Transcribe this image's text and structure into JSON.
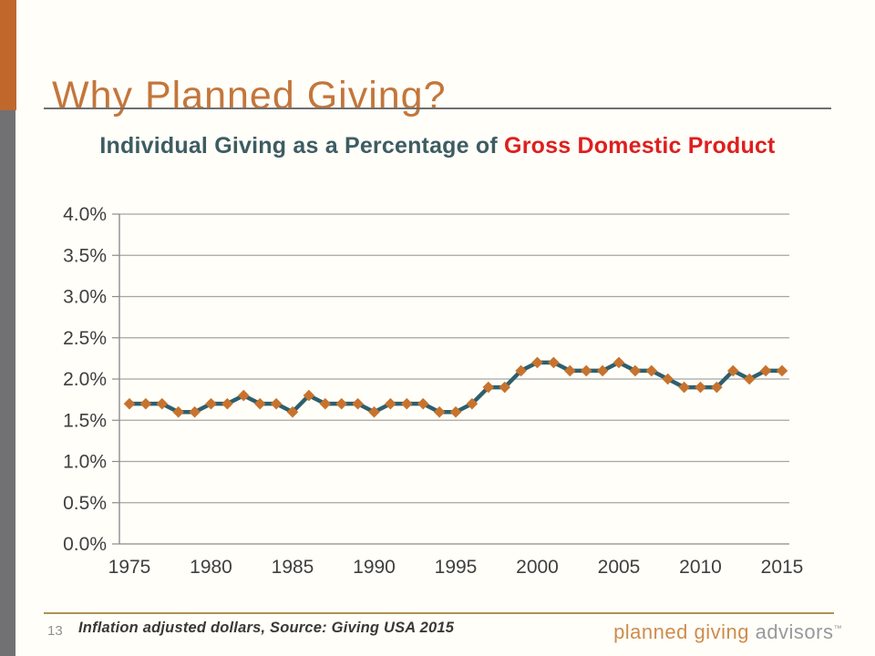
{
  "slide": {
    "title": "Why Planned Giving?",
    "page_number": "13",
    "footnote": "Inflation adjusted dollars, Source: Giving USA 2015",
    "logo": {
      "primary": "planned giving ",
      "secondary": "advisors",
      "mark": "™"
    },
    "colors": {
      "accent_orange": "#c0682c",
      "title_orange": "#c3763c",
      "sidebar_gray": "#717174",
      "footer_line_gold": "#ad9254"
    }
  },
  "chart_data": {
    "type": "line",
    "title": {
      "prefix": "Individual Giving as a Percentage of ",
      "highlight": "Gross Domestic Product"
    },
    "x": [
      1975,
      1976,
      1977,
      1978,
      1979,
      1980,
      1981,
      1982,
      1983,
      1984,
      1985,
      1986,
      1987,
      1988,
      1989,
      1990,
      1991,
      1992,
      1993,
      1994,
      1995,
      1996,
      1997,
      1998,
      1999,
      2000,
      2001,
      2002,
      2003,
      2004,
      2005,
      2006,
      2007,
      2008,
      2009,
      2010,
      2011,
      2012,
      2013,
      2014,
      2015
    ],
    "values": [
      1.7,
      1.7,
      1.7,
      1.6,
      1.6,
      1.7,
      1.7,
      1.8,
      1.7,
      1.7,
      1.6,
      1.8,
      1.7,
      1.7,
      1.7,
      1.6,
      1.7,
      1.7,
      1.7,
      1.6,
      1.6,
      1.7,
      1.9,
      1.9,
      2.1,
      2.2,
      2.2,
      2.1,
      2.1,
      2.1,
      2.2,
      2.1,
      2.1,
      2.0,
      1.9,
      1.9,
      1.9,
      2.1,
      2.0,
      2.1,
      2.1
    ],
    "x_tick_labels": [
      "1975",
      "1980",
      "1985",
      "1990",
      "1995",
      "2000",
      "2005",
      "2010",
      "2015"
    ],
    "y_tick_labels": [
      "0.0%",
      "0.5%",
      "1.0%",
      "1.5%",
      "2.0%",
      "2.5%",
      "3.0%",
      "3.5%",
      "4.0%"
    ],
    "ylim": [
      0.0,
      4.0
    ],
    "xlabel": "",
    "ylabel": "",
    "grid": "horizontal",
    "legend": "none",
    "marker": "diamond",
    "colors": {
      "line": "#2e5f6d",
      "marker": "#c7732e",
      "gridline": "#a5a5a5",
      "axis": "#8c8c8c",
      "tick_text": "#3f3f3f"
    }
  }
}
